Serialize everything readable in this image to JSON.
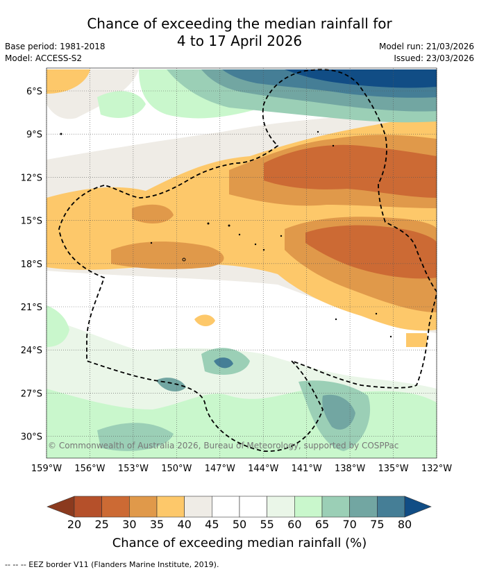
{
  "header": {
    "title_line1": "Chance of exceeding the median rainfall for",
    "title_line2": "4 to 17 April 2026",
    "base_period": "Base period: 1981-2018",
    "model": "Model: ACCESS-S2",
    "model_run": "Model run: 21/03/2026",
    "issued": "Issued: 23/03/2026"
  },
  "map": {
    "lat_labels": [
      "6°S",
      "9°S",
      "12°S",
      "15°S",
      "18°S",
      "21°S",
      "24°S",
      "27°S",
      "30°S"
    ],
    "lon_labels": [
      "159°W",
      "156°W",
      "153°W",
      "150°W",
      "147°W",
      "144°W",
      "141°W",
      "138°W",
      "135°W",
      "132°W"
    ],
    "copyright": "© Commonwealth of Australia 2026, Bureau of Meteorology, supported by COSPPac"
  },
  "colorbar": {
    "labels": [
      "20",
      "25",
      "30",
      "35",
      "40",
      "45",
      "50",
      "55",
      "60",
      "65",
      "70",
      "75",
      "80"
    ],
    "colors": [
      "#8b3a1e",
      "#b5502a",
      "#cc6a34",
      "#e0994a",
      "#fdc86a",
      "#efece6",
      "#ffffff",
      "#ffffff",
      "#eaf6e8",
      "#c9f7cc",
      "#9bcfb6",
      "#72a6a2",
      "#457e96",
      "#114d85"
    ],
    "title": "Chance of exceeding median rainfall (%)"
  },
  "footer": {
    "eez_note": "--  --  -- EEZ border V11 (Flanders Marine Institute, 2019)."
  }
}
